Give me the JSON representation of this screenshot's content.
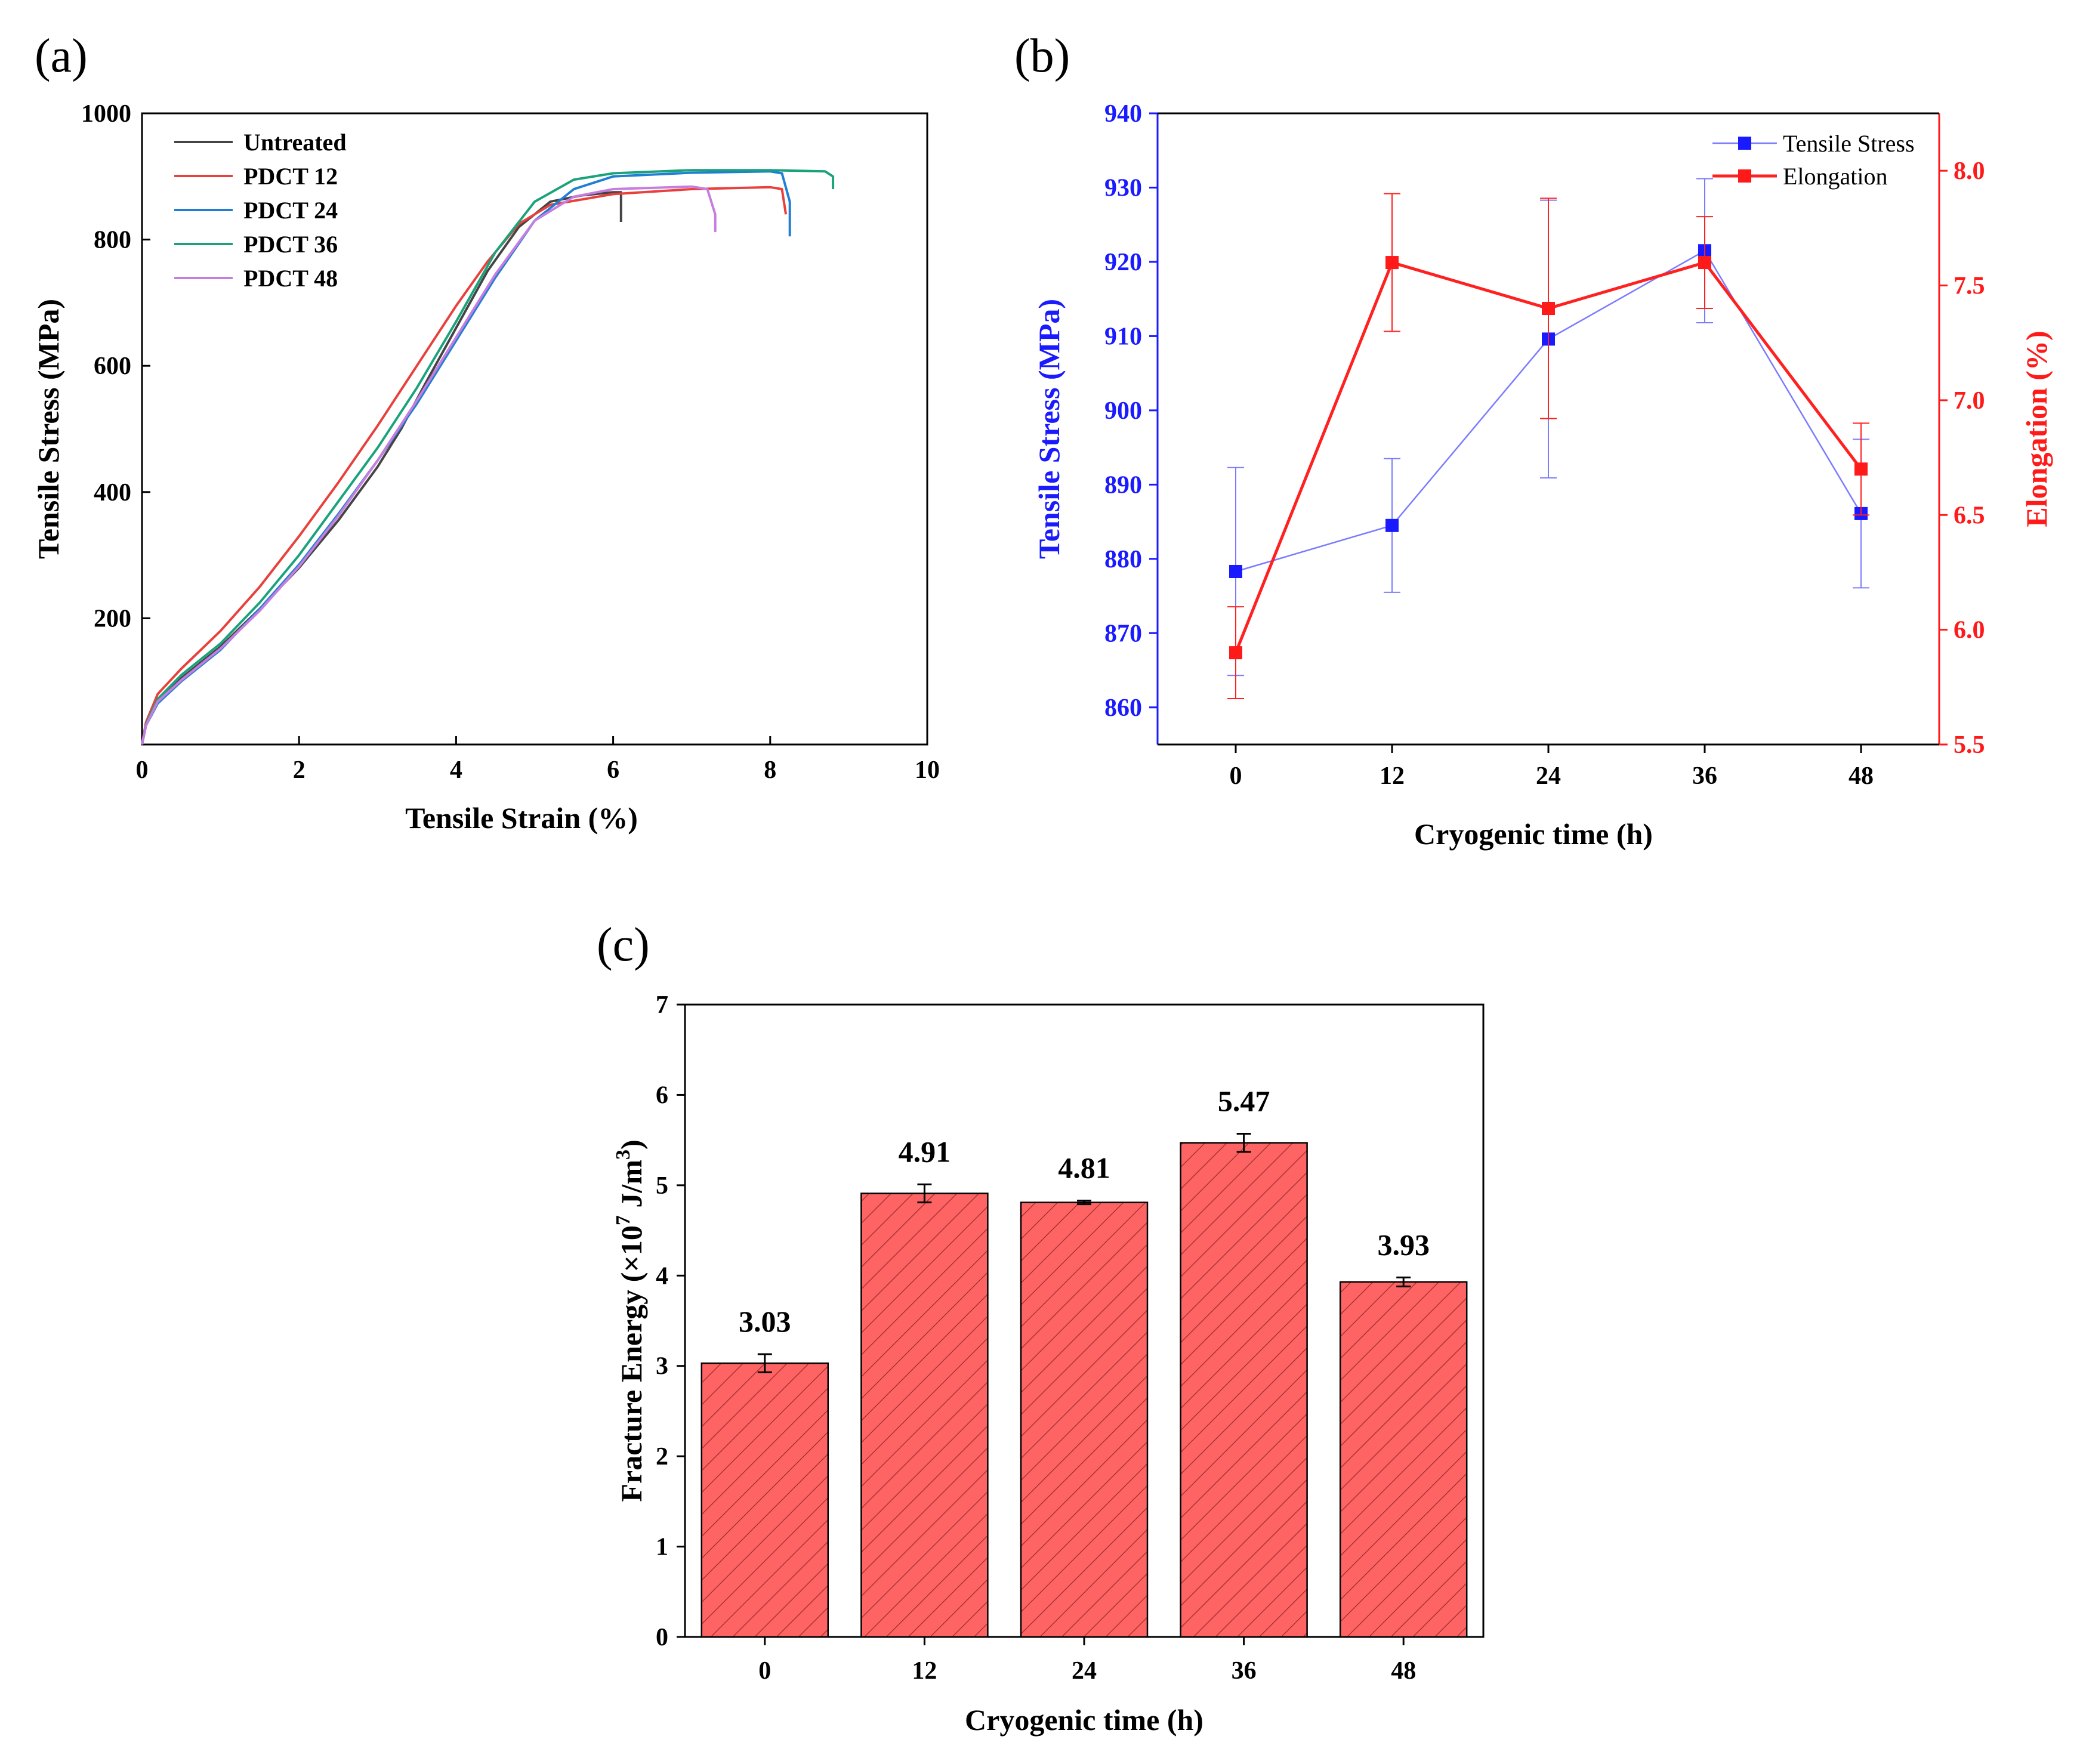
{
  "chart_data": [
    {
      "panel": "(a)",
      "type": "line",
      "xlabel": "Tensile Strain (%)",
      "ylabel": "Tensile Stress (MPa)",
      "xlim": [
        0,
        10
      ],
      "ylim": [
        0,
        1000
      ],
      "xticks": [
        "0",
        "2",
        "4",
        "6",
        "8",
        "10"
      ],
      "yticks": [
        "200",
        "400",
        "600",
        "800",
        "1000"
      ],
      "legend_position": "top-left",
      "series": [
        {
          "name": "Untreated",
          "color": "#444444",
          "x": [
            0,
            0.05,
            0.2,
            0.5,
            1.0,
            1.5,
            2.0,
            2.5,
            3.0,
            3.3,
            3.6,
            4.0,
            4.4,
            4.8,
            5.2,
            5.6,
            6.0,
            6.1,
            6.1
          ],
          "y": [
            0,
            30,
            70,
            105,
            155,
            215,
            280,
            355,
            440,
            500,
            570,
            660,
            750,
            820,
            860,
            870,
            875,
            875,
            828
          ]
        },
        {
          "name": "PDCT 12",
          "color": "#e8413c",
          "x": [
            0,
            0.05,
            0.2,
            0.5,
            1.0,
            1.5,
            2.0,
            2.5,
            3.0,
            3.5,
            4.0,
            4.4,
            4.8,
            5.2,
            6.0,
            7.0,
            8.0,
            8.15,
            8.2
          ],
          "y": [
            0,
            35,
            80,
            120,
            180,
            250,
            330,
            415,
            505,
            600,
            695,
            765,
            825,
            855,
            872,
            880,
            883,
            880,
            840
          ]
        },
        {
          "name": "PDCT 24",
          "color": "#1f7fd4",
          "x": [
            0,
            0.05,
            0.2,
            0.5,
            1.0,
            1.5,
            2.0,
            2.5,
            3.0,
            3.5,
            4.0,
            4.5,
            5.0,
            5.5,
            6.0,
            7.0,
            8.0,
            8.15,
            8.25,
            8.25
          ],
          "y": [
            0,
            30,
            65,
            100,
            150,
            215,
            285,
            365,
            450,
            540,
            640,
            740,
            830,
            880,
            900,
            906,
            908,
            905,
            860,
            805
          ]
        },
        {
          "name": "PDCT 36",
          "color": "#1aa37a",
          "x": [
            0,
            0.05,
            0.2,
            0.5,
            1.0,
            1.5,
            2.0,
            2.5,
            3.0,
            3.5,
            4.0,
            4.5,
            5.0,
            5.5,
            6.0,
            7.0,
            8.0,
            8.7,
            8.8,
            8.8
          ],
          "y": [
            0,
            32,
            72,
            110,
            160,
            225,
            300,
            385,
            470,
            565,
            670,
            780,
            860,
            895,
            905,
            910,
            910,
            908,
            900,
            880
          ]
        },
        {
          "name": "PDCT 48",
          "color": "#c77de0",
          "x": [
            0,
            0.05,
            0.2,
            0.5,
            1.0,
            1.5,
            2.0,
            2.5,
            3.0,
            3.5,
            4.0,
            4.5,
            5.0,
            5.5,
            6.0,
            7.0,
            7.2,
            7.3,
            7.3
          ],
          "y": [
            0,
            30,
            68,
            102,
            152,
            212,
            282,
            362,
            450,
            545,
            645,
            745,
            830,
            868,
            880,
            884,
            880,
            840,
            812
          ]
        }
      ]
    },
    {
      "panel": "(b)",
      "type": "line",
      "xlabel": "Cryogenic time (h)",
      "ylabel": "Tensile Stress (MPa)",
      "y2label": "Elongation (%)",
      "categories": [
        "0",
        "12",
        "24",
        "36",
        "48"
      ],
      "x": [
        0,
        12,
        24,
        36,
        48
      ],
      "xlim": [
        -6,
        54
      ],
      "ylim": [
        855,
        940
      ],
      "y2lim": [
        5.5,
        8.25
      ],
      "yticks": [
        "860",
        "870",
        "880",
        "890",
        "900",
        "910",
        "920",
        "930",
        "940"
      ],
      "y2ticks": [
        "5.5",
        "6.0",
        "6.5",
        "7.0",
        "7.5",
        "8.0"
      ],
      "legend_position": "top-right",
      "series": [
        {
          "name": "Tensile Stress",
          "axis": "left",
          "color": "#1a1aff",
          "line_color": "#7b7bff",
          "values": [
            878.3,
            884.5,
            909.6,
            921.5,
            886.1
          ],
          "err": [
            14.0,
            9.0,
            18.7,
            9.7,
            10.0
          ]
        },
        {
          "name": "Elongation",
          "axis": "right",
          "color": "#ff1a1a",
          "line_color": "#ff2020",
          "values": [
            5.9,
            7.6,
            7.4,
            7.6,
            6.7
          ],
          "err": [
            0.2,
            0.3,
            0.48,
            0.2,
            0.2
          ]
        }
      ]
    },
    {
      "panel": "(c)",
      "type": "bar",
      "xlabel": "Cryogenic time (h)",
      "ylabel_main": "Fracture Energy (×10",
      "ylabel_exp": "7",
      "ylabel_unit": " J/m",
      "ylabel_exp2": "3",
      "ylabel_close": ")",
      "categories": [
        "0",
        "12",
        "24",
        "36",
        "48"
      ],
      "values": [
        3.03,
        4.91,
        4.81,
        5.47,
        3.93
      ],
      "value_labels": [
        "3.03",
        "4.91",
        "4.81",
        "5.47",
        "3.93"
      ],
      "err": [
        0.1,
        0.1,
        0.02,
        0.1,
        0.05
      ],
      "ylim": [
        0,
        7
      ],
      "yticks": [
        "0",
        "1",
        "2",
        "3",
        "4",
        "5",
        "6",
        "7"
      ],
      "bar_color": "#ff6464",
      "hatch": "diagonal"
    }
  ]
}
